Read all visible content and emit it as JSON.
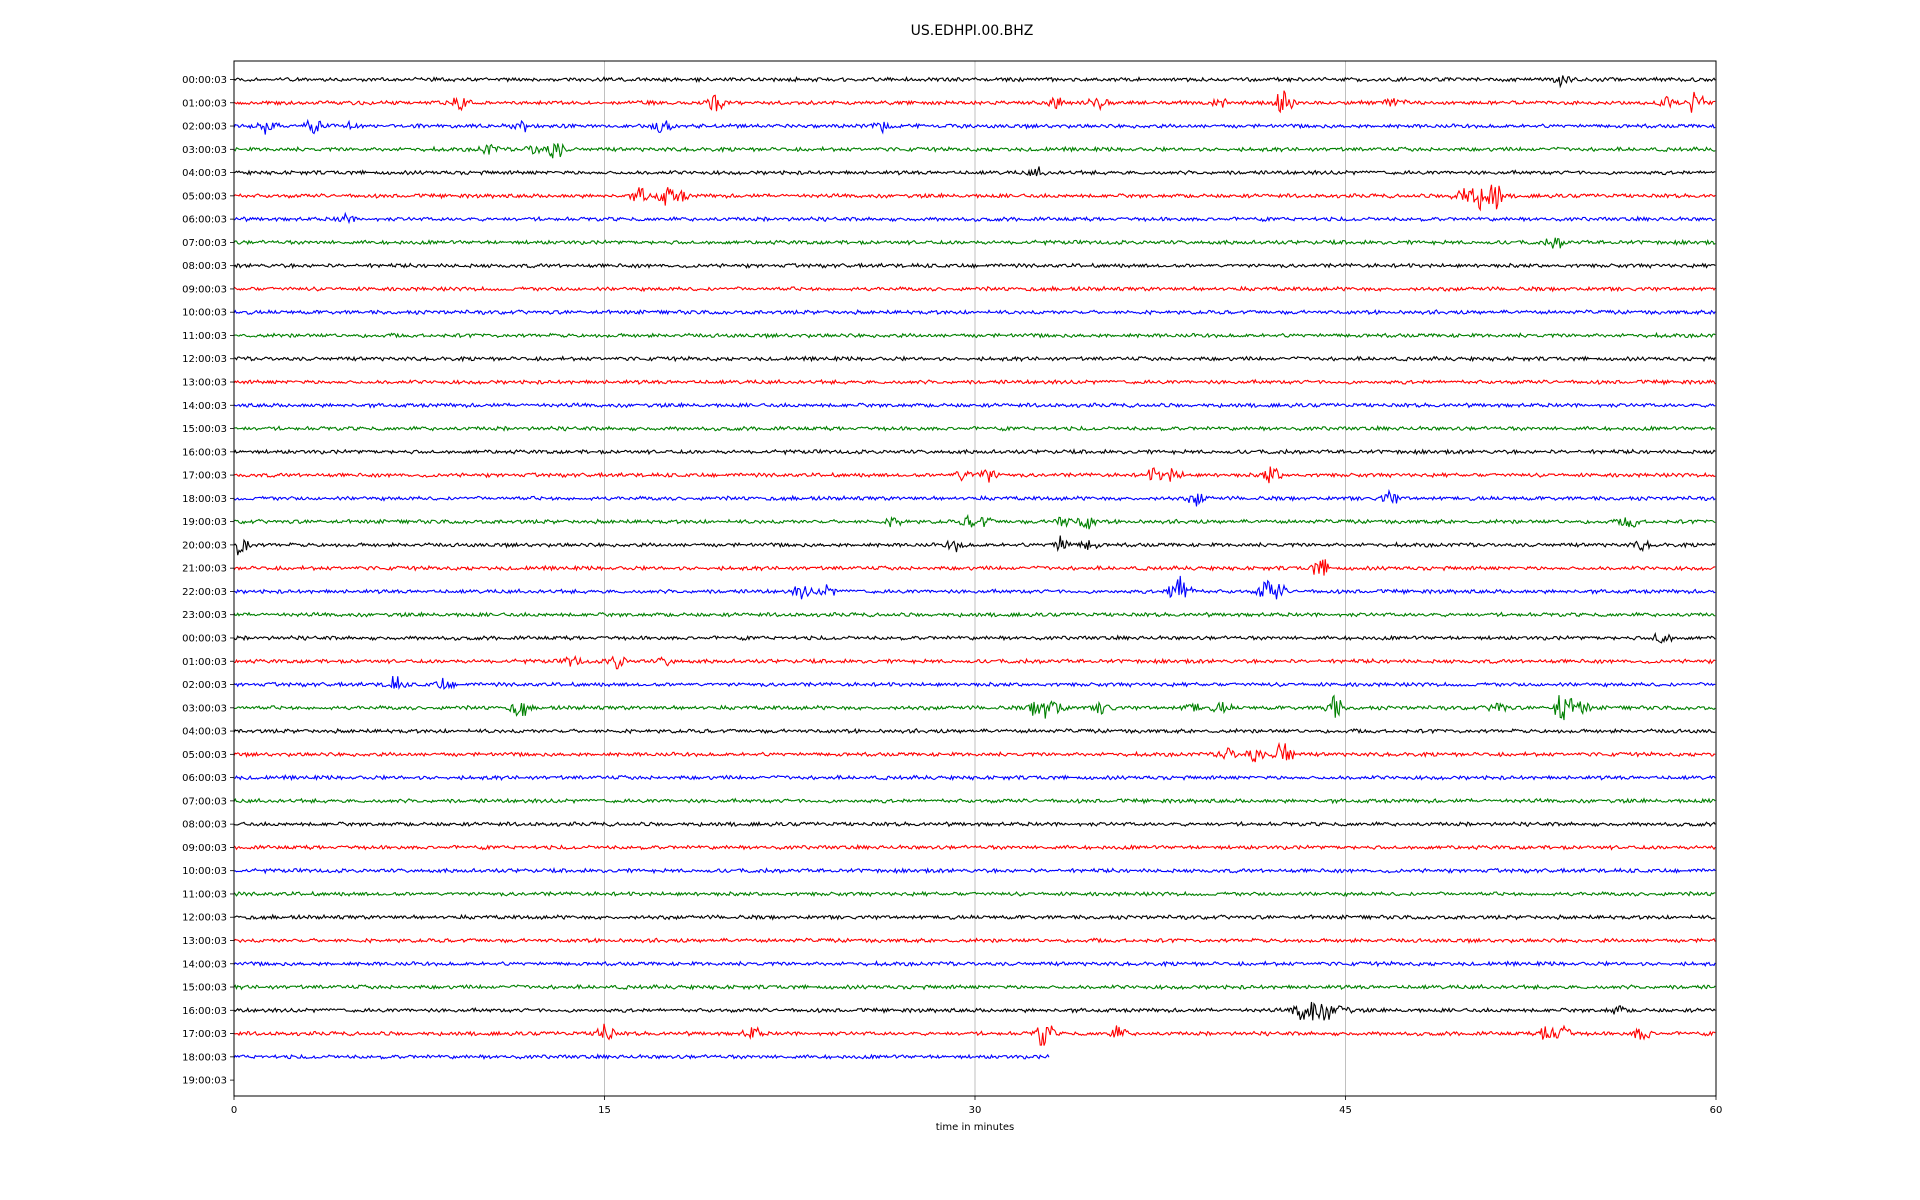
{
  "chart_data": {
    "type": "line",
    "title": "US.EDHPI.00.BHZ",
    "xlabel": "time in minutes",
    "ylabel": "",
    "xlim": [
      0,
      60
    ],
    "x_ticks": [
      "0",
      "15",
      "30",
      "45",
      "60"
    ],
    "x_tick_values": [
      0,
      15,
      30,
      45,
      60
    ],
    "grid": "vertical",
    "colors": [
      "#000000",
      "#ff0000",
      "#0000ff",
      "#008000"
    ],
    "row_labels": [
      "00:00:03",
      "01:00:03",
      "02:00:03",
      "03:00:03",
      "04:00:03",
      "05:00:03",
      "06:00:03",
      "07:00:03",
      "08:00:03",
      "09:00:03",
      "10:00:03",
      "11:00:03",
      "12:00:03",
      "13:00:03",
      "14:00:03",
      "15:00:03",
      "16:00:03",
      "17:00:03",
      "18:00:03",
      "19:00:03",
      "20:00:03",
      "21:00:03",
      "22:00:03",
      "23:00:03",
      "00:00:03",
      "01:00:03",
      "02:00:03",
      "03:00:03",
      "04:00:03",
      "05:00:03",
      "06:00:03",
      "07:00:03",
      "08:00:03",
      "09:00:03",
      "10:00:03",
      "11:00:03",
      "12:00:03",
      "13:00:03",
      "14:00:03",
      "15:00:03",
      "16:00:03",
      "17:00:03",
      "18:00:03",
      "19:00:03"
    ],
    "trace_end_minutes": [
      60,
      60,
      60,
      60,
      60,
      60,
      60,
      60,
      60,
      60,
      60,
      60,
      60,
      60,
      60,
      60,
      60,
      60,
      60,
      60,
      60,
      60,
      60,
      60,
      60,
      60,
      60,
      60,
      60,
      60,
      60,
      60,
      60,
      60,
      60,
      60,
      60,
      60,
      60,
      60,
      60,
      60,
      33,
      0
    ],
    "events": [
      [
        [
          53.8,
          0.45
        ]
      ],
      [
        [
          9.2,
          0.5
        ],
        [
          19.5,
          0.7
        ],
        [
          33.3,
          0.4
        ],
        [
          35.0,
          0.5
        ],
        [
          40.0,
          0.3
        ],
        [
          42.5,
          1.0
        ],
        [
          47.0,
          0.4
        ],
        [
          58.0,
          0.3
        ],
        [
          59.2,
          1.0
        ]
      ],
      [
        [
          1.4,
          0.6
        ],
        [
          3.2,
          0.5
        ],
        [
          4.8,
          0.3
        ],
        [
          11.6,
          0.6
        ],
        [
          17.3,
          0.6
        ],
        [
          26.2,
          0.4
        ]
      ],
      [
        [
          10.3,
          0.4
        ],
        [
          12.2,
          0.4
        ],
        [
          13.0,
          0.8
        ]
      ],
      [
        [
          32.5,
          0.3
        ]
      ],
      [
        [
          16.5,
          0.6
        ],
        [
          17.5,
          0.7
        ],
        [
          18.0,
          0.5
        ],
        [
          49.7,
          0.8
        ],
        [
          50.3,
          1.1
        ],
        [
          51.0,
          1.3
        ]
      ],
      [
        [
          4.5,
          0.3
        ]
      ],
      [
        [
          53.5,
          0.4
        ]
      ],
      [],
      [],
      [],
      [],
      [],
      [],
      [],
      [],
      [],
      [
        [
          29.5,
          0.5
        ],
        [
          30.5,
          0.6
        ],
        [
          37.3,
          0.5
        ],
        [
          38.0,
          0.5
        ],
        [
          42.0,
          0.7
        ]
      ],
      [
        [
          39.0,
          0.5
        ],
        [
          46.8,
          0.5
        ]
      ],
      [
        [
          26.8,
          0.4
        ],
        [
          29.8,
          0.4
        ],
        [
          30.3,
          0.4
        ],
        [
          33.5,
          0.5
        ],
        [
          34.5,
          0.6
        ],
        [
          56.5,
          0.5
        ]
      ],
      [
        [
          0.3,
          0.9
        ],
        [
          29.2,
          0.4
        ],
        [
          33.5,
          0.7
        ],
        [
          34.6,
          0.4
        ],
        [
          57.0,
          0.3
        ]
      ],
      [
        [
          44.0,
          0.8
        ]
      ],
      [
        [
          23.0,
          0.5
        ],
        [
          24.0,
          0.4
        ],
        [
          38.2,
          1.5
        ],
        [
          38.5,
          1.0
        ],
        [
          41.8,
          0.9
        ],
        [
          42.2,
          0.7
        ]
      ],
      [],
      [
        [
          57.8,
          0.6
        ]
      ],
      [
        [
          13.7,
          0.4
        ],
        [
          15.5,
          0.6
        ],
        [
          17.5,
          0.3
        ]
      ],
      [
        [
          6.5,
          0.6
        ],
        [
          8.5,
          0.4
        ]
      ],
      [
        [
          11.6,
          0.7
        ],
        [
          32.5,
          0.6
        ],
        [
          32.9,
          0.9
        ],
        [
          33.3,
          0.6
        ],
        [
          35.2,
          0.5
        ],
        [
          38.8,
          0.4
        ],
        [
          40.0,
          0.4
        ],
        [
          44.5,
          1.0
        ],
        [
          51.2,
          0.5
        ],
        [
          53.8,
          1.5
        ],
        [
          54.5,
          0.6
        ]
      ],
      [],
      [
        [
          40.2,
          0.5
        ],
        [
          41.3,
          0.6
        ],
        [
          42.5,
          1.3
        ]
      ],
      [],
      [],
      [],
      [],
      [],
      [],
      [],
      [],
      [],
      [],
      [
        [
          43.2,
          0.8
        ],
        [
          43.6,
          1.2
        ],
        [
          44.2,
          0.7
        ],
        [
          44.8,
          0.5
        ],
        [
          56.0,
          0.3
        ]
      ],
      [
        [
          15.0,
          0.8
        ],
        [
          21.0,
          0.5
        ],
        [
          32.8,
          1.1
        ],
        [
          35.8,
          0.5
        ],
        [
          53.3,
          1.1
        ],
        [
          53.8,
          0.6
        ],
        [
          57.0,
          0.6
        ]
      ],
      [],
      []
    ]
  }
}
